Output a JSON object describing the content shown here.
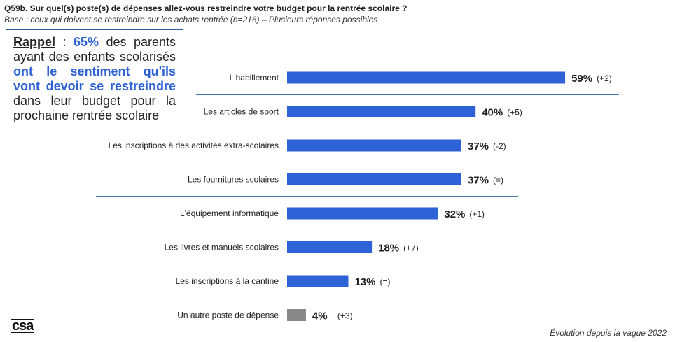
{
  "header": {
    "title": "Q59b. Sur quel(s) poste(s) de dépenses allez-vous restreindre votre budget pour la rentrée scolaire ?",
    "subtitle": "Base : ceux qui doivent se restreindre sur les achats rentrée (n=216) – Plusieurs réponses possibles"
  },
  "callout": {
    "keyword": "Rappel",
    "sep": " : ",
    "pct": "65%",
    "text1": " des parents ayant des enfants scolarisés ",
    "highlight": "ont le sentiment qu'ils vont devoir se restreindre",
    "text2": " dans leur budget pour la prochaine rentrée scolaire"
  },
  "footer": {
    "logo": "csa",
    "note": "Évolution depuis la vague 2022"
  },
  "colors": {
    "bar": "#2d63d6",
    "bar_other": "#888888",
    "separator": "#2e5fa7"
  },
  "chart_data": {
    "type": "bar",
    "orientation": "horizontal",
    "categories": [
      "L'habillement",
      "Les articles de sport",
      "Les inscriptions à des activités extra-scolaires",
      "Les fournitures scolaires",
      "L'équipement informatique",
      "Les livres et manuels scolaires",
      "Les inscriptions à la cantine",
      "Un autre poste de dépense"
    ],
    "values": [
      59,
      40,
      37,
      37,
      32,
      18,
      13,
      4
    ],
    "value_labels": [
      "59%",
      "40%",
      "37%",
      "37%",
      "32%",
      "18%",
      "13%",
      "4%"
    ],
    "changes": [
      "(+2)",
      "(+5)",
      "(-2)",
      "(=)",
      "(+1)",
      "(+7)",
      "(=)",
      "(+3)"
    ],
    "bar_colors": [
      "#2d63d6",
      "#2d63d6",
      "#2d63d6",
      "#2d63d6",
      "#2d63d6",
      "#2d63d6",
      "#2d63d6",
      "#888888"
    ],
    "separators_after": [
      0,
      3
    ],
    "xlim": [
      0,
      100
    ],
    "grid": false,
    "legend": "none"
  }
}
